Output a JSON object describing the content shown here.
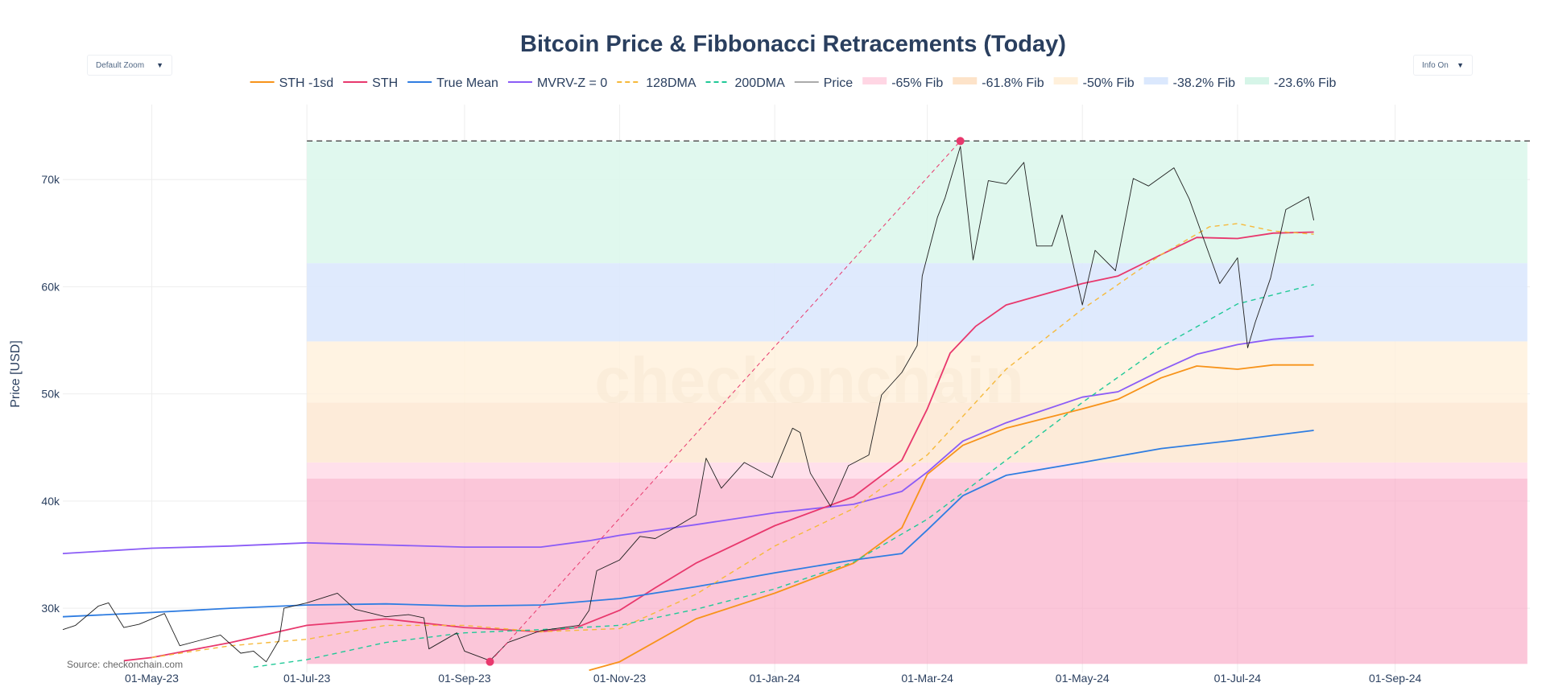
{
  "controls": {
    "zoom_label": "Default Zoom",
    "info_label": "Info On",
    "caret": "▼"
  },
  "source_text": "Source: checkonchain.com",
  "watermark": "checkonchain",
  "chart_data": {
    "type": "line",
    "title": "Bitcoin Price & Fibbonacci Retracements (Today)",
    "ylabel": "Price [USD]",
    "xlabel": "",
    "xlim": [
      "2023-03-27",
      "2024-10-24"
    ],
    "ylim": [
      24000,
      77000
    ],
    "grid": true,
    "legend_position": "top",
    "x_ticks": [
      {
        "date": "2023-05-01",
        "label": "01-May-23"
      },
      {
        "date": "2023-07-01",
        "label": "01-Jul-23"
      },
      {
        "date": "2023-09-01",
        "label": "01-Sep-23"
      },
      {
        "date": "2023-11-01",
        "label": "01-Nov-23"
      },
      {
        "date": "2024-01-01",
        "label": "01-Jan-24"
      },
      {
        "date": "2024-03-01",
        "label": "01-Mar-24"
      },
      {
        "date": "2024-05-01",
        "label": "01-May-24"
      },
      {
        "date": "2024-07-01",
        "label": "01-Jul-24"
      },
      {
        "date": "2024-09-01",
        "label": "01-Sep-24"
      }
    ],
    "y_ticks": [
      {
        "value": 30000,
        "label": "30k"
      },
      {
        "value": 40000,
        "label": "40k"
      },
      {
        "value": 50000,
        "label": "50k"
      },
      {
        "value": 60000,
        "label": "60k"
      },
      {
        "value": 70000,
        "label": "70k"
      }
    ],
    "fib_zones": [
      {
        "name": "-65% Fib",
        "color": "#f9a8c4",
        "opacity": 0.65,
        "from": 24800,
        "to": 42100
      },
      {
        "name": "-65% Fib",
        "color": "#ffd6e4",
        "opacity": 0.75,
        "from": 42100,
        "to": 43600
      },
      {
        "name": "-61.8% Fib",
        "color": "#fde6cf",
        "opacity": 0.8,
        "from": 43600,
        "to": 49200
      },
      {
        "name": "-50% Fib",
        "color": "#fff0db",
        "opacity": 0.8,
        "from": 49200,
        "to": 54900
      },
      {
        "name": "-38.2% Fib",
        "color": "#dbe8fd",
        "opacity": 0.9,
        "from": 54900,
        "to": 62200
      },
      {
        "name": "-23.6% Fib",
        "color": "#ddf7ec",
        "opacity": 0.9,
        "from": 62200,
        "to": 73600
      }
    ],
    "fib_range": {
      "start": "2023-07-01",
      "end": "2024-10-23"
    },
    "ath_line": {
      "value": 73600,
      "from": "2023-07-01",
      "to": "2024-10-24"
    },
    "retracement_line": {
      "from": {
        "date": "2023-09-11",
        "value": 25000
      },
      "to": {
        "date": "2024-03-14",
        "value": 73600
      }
    },
    "markers": [
      {
        "date": "2023-09-11",
        "value": 25000,
        "color": "#e8386d"
      },
      {
        "date": "2024-03-14",
        "value": 73600,
        "color": "#e8386d"
      }
    ],
    "legend": [
      {
        "name": "STH -1sd",
        "color": "#f7931a",
        "style": "solid"
      },
      {
        "name": "STH",
        "color": "#e8386d",
        "style": "solid"
      },
      {
        "name": "True Mean",
        "color": "#2f7de1",
        "style": "solid"
      },
      {
        "name": "MVRV-Z = 0",
        "color": "#8b5cf6",
        "style": "solid"
      },
      {
        "name": "128DMA",
        "color": "#f6b93b",
        "style": "dash"
      },
      {
        "name": "200DMA",
        "color": "#20c997",
        "style": "dash"
      },
      {
        "name": "Price",
        "color": "#aaaaaa",
        "style": "solid"
      },
      {
        "name": "-65% Fib",
        "color": "#ffd6e4",
        "style": "box"
      },
      {
        "name": "-61.8% Fib",
        "color": "#fde3c9",
        "style": "box"
      },
      {
        "name": "-50% Fib",
        "color": "#fff0db",
        "style": "box"
      },
      {
        "name": "-38.2% Fib",
        "color": "#dbe8fd",
        "style": "box"
      },
      {
        "name": "-23.6% Fib",
        "color": "#d6f5e8",
        "style": "box"
      }
    ],
    "series": [
      {
        "name": "MVRV-Z = 0",
        "color": "#8b5cf6",
        "width": 1.8,
        "dash": "",
        "points": [
          [
            "2023-03-27",
            35100
          ],
          [
            "2023-05-01",
            35600
          ],
          [
            "2023-06-01",
            35800
          ],
          [
            "2023-07-01",
            36100
          ],
          [
            "2023-08-01",
            35900
          ],
          [
            "2023-09-01",
            35700
          ],
          [
            "2023-10-01",
            35700
          ],
          [
            "2023-10-20",
            36300
          ],
          [
            "2023-11-01",
            36800
          ],
          [
            "2023-12-01",
            37800
          ],
          [
            "2024-01-01",
            38900
          ],
          [
            "2024-02-01",
            39700
          ],
          [
            "2024-02-20",
            40900
          ],
          [
            "2024-03-01",
            42700
          ],
          [
            "2024-03-15",
            45600
          ],
          [
            "2024-04-01",
            47300
          ],
          [
            "2024-05-01",
            49700
          ],
          [
            "2024-05-15",
            50200
          ],
          [
            "2024-06-01",
            52200
          ],
          [
            "2024-06-15",
            53700
          ],
          [
            "2024-07-01",
            54600
          ],
          [
            "2024-07-15",
            55100
          ],
          [
            "2024-07-31",
            55400
          ]
        ]
      },
      {
        "name": "STH",
        "color": "#e8386d",
        "width": 1.8,
        "dash": "",
        "points": [
          [
            "2023-04-20",
            25100
          ],
          [
            "2023-05-01",
            25400
          ],
          [
            "2023-06-01",
            26800
          ],
          [
            "2023-07-01",
            28400
          ],
          [
            "2023-08-01",
            29000
          ],
          [
            "2023-09-01",
            28200
          ],
          [
            "2023-10-01",
            27800
          ],
          [
            "2023-10-15",
            28200
          ],
          [
            "2023-11-01",
            29800
          ],
          [
            "2023-11-15",
            31900
          ],
          [
            "2023-12-01",
            34200
          ],
          [
            "2024-01-01",
            37700
          ],
          [
            "2024-02-01",
            40400
          ],
          [
            "2024-02-20",
            43800
          ],
          [
            "2024-03-01",
            48600
          ],
          [
            "2024-03-10",
            53800
          ],
          [
            "2024-03-20",
            56300
          ],
          [
            "2024-04-01",
            58300
          ],
          [
            "2024-05-01",
            60300
          ],
          [
            "2024-05-15",
            61000
          ],
          [
            "2024-06-01",
            63000
          ],
          [
            "2024-06-15",
            64600
          ],
          [
            "2024-07-01",
            64500
          ],
          [
            "2024-07-15",
            65000
          ],
          [
            "2024-07-31",
            65100
          ]
        ]
      },
      {
        "name": "STH -1sd",
        "color": "#f7931a",
        "width": 1.8,
        "dash": "",
        "points": [
          [
            "2023-10-20",
            24200
          ],
          [
            "2023-11-01",
            25000
          ],
          [
            "2023-12-01",
            29000
          ],
          [
            "2024-01-01",
            31400
          ],
          [
            "2024-02-01",
            34200
          ],
          [
            "2024-02-20",
            37500
          ],
          [
            "2024-03-01",
            42500
          ],
          [
            "2024-03-15",
            45200
          ],
          [
            "2024-04-01",
            46800
          ],
          [
            "2024-05-01",
            48600
          ],
          [
            "2024-05-15",
            49500
          ],
          [
            "2024-06-01",
            51500
          ],
          [
            "2024-06-15",
            52600
          ],
          [
            "2024-07-01",
            52300
          ],
          [
            "2024-07-15",
            52700
          ],
          [
            "2024-07-31",
            52700
          ]
        ]
      },
      {
        "name": "True Mean",
        "color": "#2f7de1",
        "width": 1.8,
        "dash": "",
        "points": [
          [
            "2023-03-27",
            29200
          ],
          [
            "2023-05-01",
            29600
          ],
          [
            "2023-06-01",
            30000
          ],
          [
            "2023-07-01",
            30300
          ],
          [
            "2023-08-01",
            30400
          ],
          [
            "2023-09-01",
            30200
          ],
          [
            "2023-10-01",
            30300
          ],
          [
            "2023-11-01",
            30900
          ],
          [
            "2023-12-01",
            32000
          ],
          [
            "2024-01-01",
            33300
          ],
          [
            "2024-02-01",
            34500
          ],
          [
            "2024-02-20",
            35100
          ],
          [
            "2024-03-01",
            37300
          ],
          [
            "2024-03-15",
            40500
          ],
          [
            "2024-04-01",
            42400
          ],
          [
            "2024-05-01",
            43600
          ],
          [
            "2024-06-01",
            44900
          ],
          [
            "2024-07-01",
            45700
          ],
          [
            "2024-07-31",
            46600
          ]
        ]
      },
      {
        "name": "128DMA",
        "color": "#f6b93b",
        "width": 1.4,
        "dash": "6,5",
        "points": [
          [
            "2023-05-01",
            25400
          ],
          [
            "2023-06-01",
            26500
          ],
          [
            "2023-07-01",
            27100
          ],
          [
            "2023-08-01",
            28400
          ],
          [
            "2023-09-01",
            28400
          ],
          [
            "2023-10-01",
            27800
          ],
          [
            "2023-11-01",
            28100
          ],
          [
            "2023-12-01",
            31300
          ],
          [
            "2024-01-01",
            35800
          ],
          [
            "2024-02-01",
            39300
          ],
          [
            "2024-03-01",
            44300
          ],
          [
            "2024-04-01",
            52300
          ],
          [
            "2024-05-01",
            57900
          ],
          [
            "2024-06-01",
            63000
          ],
          [
            "2024-06-20",
            65600
          ],
          [
            "2024-07-01",
            65900
          ],
          [
            "2024-07-15",
            65200
          ],
          [
            "2024-07-31",
            64900
          ]
        ]
      },
      {
        "name": "200DMA",
        "color": "#20c997",
        "width": 1.4,
        "dash": "6,5",
        "points": [
          [
            "2023-06-10",
            24500
          ],
          [
            "2023-07-01",
            25200
          ],
          [
            "2023-08-01",
            26800
          ],
          [
            "2023-09-01",
            27700
          ],
          [
            "2023-10-01",
            28000
          ],
          [
            "2023-11-01",
            28400
          ],
          [
            "2023-12-01",
            29900
          ],
          [
            "2024-01-01",
            31800
          ],
          [
            "2024-02-01",
            34300
          ],
          [
            "2024-03-01",
            38300
          ],
          [
            "2024-04-01",
            43800
          ],
          [
            "2024-05-01",
            49200
          ],
          [
            "2024-06-01",
            54400
          ],
          [
            "2024-07-01",
            58400
          ],
          [
            "2024-07-31",
            60200
          ]
        ]
      },
      {
        "name": "Price",
        "color": "#1f1f1f",
        "width": 0.9,
        "dash": "",
        "points": [
          [
            "2023-03-27",
            28000
          ],
          [
            "2023-04-01",
            28400
          ],
          [
            "2023-04-10",
            30200
          ],
          [
            "2023-04-14",
            30500
          ],
          [
            "2023-04-20",
            28200
          ],
          [
            "2023-04-26",
            28500
          ],
          [
            "2023-05-06",
            29500
          ],
          [
            "2023-05-12",
            26500
          ],
          [
            "2023-05-20",
            27000
          ],
          [
            "2023-05-28",
            27500
          ],
          [
            "2023-06-05",
            25800
          ],
          [
            "2023-06-10",
            26000
          ],
          [
            "2023-06-15",
            25000
          ],
          [
            "2023-06-20",
            27000
          ],
          [
            "2023-06-22",
            30000
          ],
          [
            "2023-07-01",
            30500
          ],
          [
            "2023-07-13",
            31400
          ],
          [
            "2023-07-20",
            29900
          ],
          [
            "2023-08-01",
            29200
          ],
          [
            "2023-08-10",
            29400
          ],
          [
            "2023-08-16",
            29100
          ],
          [
            "2023-08-18",
            26200
          ],
          [
            "2023-08-29",
            27700
          ],
          [
            "2023-09-01",
            26000
          ],
          [
            "2023-09-11",
            25100
          ],
          [
            "2023-09-18",
            26800
          ],
          [
            "2023-10-01",
            27900
          ],
          [
            "2023-10-16",
            28400
          ],
          [
            "2023-10-20",
            29800
          ],
          [
            "2023-10-23",
            33500
          ],
          [
            "2023-11-01",
            34500
          ],
          [
            "2023-11-09",
            36700
          ],
          [
            "2023-11-15",
            36500
          ],
          [
            "2023-11-24",
            37700
          ],
          [
            "2023-12-01",
            38700
          ],
          [
            "2023-12-05",
            44000
          ],
          [
            "2023-12-11",
            41200
          ],
          [
            "2023-12-20",
            43600
          ],
          [
            "2023-12-31",
            42200
          ],
          [
            "2024-01-08",
            46800
          ],
          [
            "2024-01-11",
            46400
          ],
          [
            "2024-01-15",
            42600
          ],
          [
            "2024-01-23",
            39500
          ],
          [
            "2024-01-30",
            43300
          ],
          [
            "2024-02-07",
            44300
          ],
          [
            "2024-02-12",
            49900
          ],
          [
            "2024-02-20",
            52000
          ],
          [
            "2024-02-26",
            54500
          ],
          [
            "2024-02-28",
            61000
          ],
          [
            "2024-03-05",
            66500
          ],
          [
            "2024-03-08",
            68300
          ],
          [
            "2024-03-14",
            73100
          ],
          [
            "2024-03-19",
            62500
          ],
          [
            "2024-03-25",
            69900
          ],
          [
            "2024-04-01",
            69600
          ],
          [
            "2024-04-08",
            71600
          ],
          [
            "2024-04-13",
            63800
          ],
          [
            "2024-04-19",
            63800
          ],
          [
            "2024-04-23",
            66700
          ],
          [
            "2024-05-01",
            58300
          ],
          [
            "2024-05-06",
            63400
          ],
          [
            "2024-05-14",
            61500
          ],
          [
            "2024-05-21",
            70100
          ],
          [
            "2024-05-27",
            69400
          ],
          [
            "2024-06-06",
            71100
          ],
          [
            "2024-06-12",
            68200
          ],
          [
            "2024-06-24",
            60300
          ],
          [
            "2024-07-01",
            62700
          ],
          [
            "2024-07-05",
            54300
          ],
          [
            "2024-07-08",
            56700
          ],
          [
            "2024-07-14",
            60800
          ],
          [
            "2024-07-20",
            67200
          ],
          [
            "2024-07-29",
            68400
          ],
          [
            "2024-07-31",
            66200
          ]
        ]
      }
    ]
  }
}
